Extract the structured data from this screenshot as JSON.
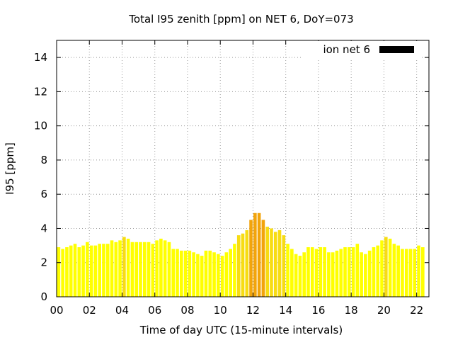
{
  "chart_data": {
    "type": "bar",
    "title": "Total I95 zenith [ppm] on NET 6, DoY=073",
    "xlabel": "Time of day UTC (15-minute intervals)",
    "ylabel": "I95 [ppm]",
    "xlim": [
      0,
      22.75
    ],
    "ylim": [
      0,
      15
    ],
    "xticks": [
      "00",
      "02",
      "04",
      "06",
      "08",
      "10",
      "12",
      "14",
      "16",
      "18",
      "20",
      "22"
    ],
    "yticks": [
      "0",
      "2",
      "4",
      "6",
      "8",
      "10",
      "12",
      "14"
    ],
    "grid": true,
    "legend": {
      "position": "top-right",
      "entries": [
        "ion net 6"
      ]
    },
    "colors": {
      "low": "#ffff00",
      "mid": "#f7dc13",
      "high": "#f2a40b",
      "legend": "#000000",
      "grid": "#999999"
    },
    "interval_minutes": 15,
    "values": [
      2.9,
      2.8,
      2.9,
      3.0,
      3.1,
      2.9,
      3.0,
      3.2,
      3.0,
      3.0,
      3.1,
      3.1,
      3.1,
      3.3,
      3.2,
      3.3,
      3.5,
      3.4,
      3.2,
      3.2,
      3.2,
      3.2,
      3.2,
      3.1,
      3.3,
      3.4,
      3.3,
      3.2,
      2.8,
      2.8,
      2.7,
      2.7,
      2.7,
      2.6,
      2.5,
      2.4,
      2.7,
      2.7,
      2.6,
      2.5,
      2.4,
      2.6,
      2.8,
      3.1,
      3.6,
      3.7,
      3.9,
      4.5,
      4.9,
      4.9,
      4.5,
      4.1,
      4.0,
      3.8,
      3.9,
      3.6,
      3.1,
      2.8,
      2.5,
      2.4,
      2.6,
      2.9,
      2.9,
      2.8,
      2.9,
      2.9,
      2.6,
      2.6,
      2.7,
      2.8,
      2.9,
      2.9,
      2.9,
      3.1,
      2.6,
      2.5,
      2.7,
      2.9,
      3.0,
      3.3,
      3.5,
      3.4,
      3.1,
      3.0,
      2.8,
      2.8,
      2.8,
      2.8,
      3.0,
      2.9
    ]
  }
}
